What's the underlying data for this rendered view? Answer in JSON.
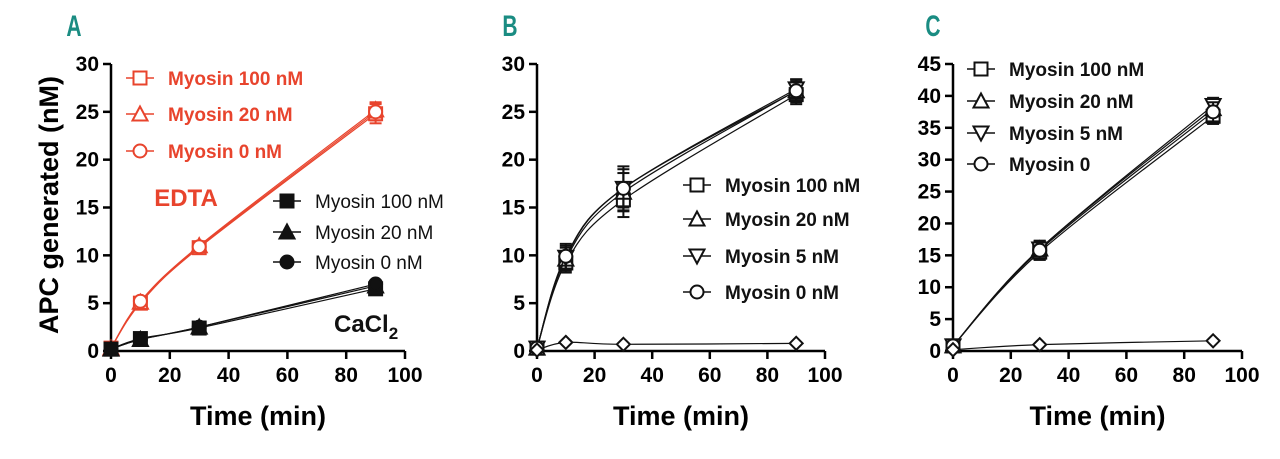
{
  "figure": {
    "y_axis_label": "APC generated (nM)",
    "x_axis_label": "Time (min)"
  },
  "colors": {
    "edta": "#e8442d",
    "cacl2": "#111111",
    "axis": "#000000",
    "panel_letter": "#1a8c82"
  },
  "chart_data": [
    {
      "panel": "A",
      "type": "scatter",
      "xlabel": "Time (min)",
      "ylabel": "APC generated (nM)",
      "xlim": [
        0,
        100
      ],
      "ylim": [
        0,
        30
      ],
      "xticks": [
        0,
        20,
        40,
        60,
        80,
        100
      ],
      "yticks": [
        0,
        5,
        10,
        15,
        20,
        25,
        30
      ],
      "annotations": [
        {
          "text": "EDTA",
          "color": "edta"
        },
        {
          "text": "CaCl",
          "subscript": "2",
          "color": "cacl2"
        }
      ],
      "series": [
        {
          "name": "Myosin 100 nM",
          "group": "EDTA",
          "marker": "square-open",
          "x": [
            0,
            10,
            30,
            90
          ],
          "y": [
            0.3,
            5.0,
            10.8,
            24.8
          ],
          "error": [
            0,
            0.3,
            0.4,
            1.0
          ]
        },
        {
          "name": "Myosin 20 nM",
          "group": "EDTA",
          "marker": "triangle-up-open",
          "x": [
            0,
            10,
            30,
            90
          ],
          "y": [
            0.3,
            5.1,
            11.0,
            25.2
          ],
          "error": [
            0,
            0.3,
            0.4,
            0.8
          ]
        },
        {
          "name": "Myosin 0 nM",
          "group": "EDTA",
          "marker": "circle-open",
          "x": [
            0,
            10,
            30,
            90
          ],
          "y": [
            0.3,
            5.2,
            10.9,
            25.0
          ],
          "error": [
            0,
            0.3,
            0.4,
            0.9
          ]
        },
        {
          "name": "Myosin 100 nM",
          "group": "CaCl2",
          "marker": "square-filled",
          "x": [
            0,
            10,
            30,
            90
          ],
          "y": [
            0.2,
            1.3,
            2.4,
            6.5
          ],
          "error": [
            0,
            0.1,
            0.2,
            0.3
          ]
        },
        {
          "name": "Myosin 20 nM",
          "group": "CaCl2",
          "marker": "triangle-up-filled",
          "x": [
            0,
            10,
            30,
            90
          ],
          "y": [
            0.2,
            1.2,
            2.5,
            6.8
          ],
          "error": [
            0,
            0.1,
            0.2,
            0.3
          ]
        },
        {
          "name": "Myosin 0 nM",
          "group": "CaCl2",
          "marker": "circle-filled",
          "x": [
            0,
            10,
            30,
            90
          ],
          "y": [
            0.2,
            1.2,
            2.5,
            7.0
          ],
          "error": [
            0,
            0.1,
            0.2,
            0.3
          ]
        }
      ]
    },
    {
      "panel": "B",
      "type": "scatter",
      "xlabel": "Time (min)",
      "ylabel": "",
      "xlim": [
        0,
        100
      ],
      "ylim": [
        0,
        30
      ],
      "xticks": [
        0,
        20,
        40,
        60,
        80,
        100
      ],
      "yticks": [
        0,
        5,
        10,
        15,
        20,
        25,
        30
      ],
      "series": [
        {
          "name": "Myosin 100 nM",
          "marker": "square-open",
          "x": [
            0,
            10,
            30,
            90
          ],
          "y": [
            0.3,
            9.2,
            15.8,
            26.8
          ],
          "error": [
            0,
            1.0,
            1.8,
            1.0
          ]
        },
        {
          "name": "Myosin 20 nM",
          "marker": "triangle-up-open",
          "x": [
            0,
            10,
            30,
            90
          ],
          "y": [
            0.3,
            9.6,
            16.6,
            27.2
          ],
          "error": [
            0,
            1.2,
            2.0,
            1.0
          ]
        },
        {
          "name": "Myosin 5 nM",
          "marker": "triangle-down-open",
          "x": [
            0,
            10,
            30,
            90
          ],
          "y": [
            0.3,
            9.8,
            17.0,
            27.4
          ],
          "error": [
            0,
            1.2,
            2.0,
            1.0
          ]
        },
        {
          "name": "Myosin 0 nM",
          "marker": "circle-open",
          "x": [
            0,
            10,
            30,
            90
          ],
          "y": [
            0.3,
            9.9,
            17.0,
            27.2
          ],
          "error": [
            0,
            1.3,
            2.3,
            1.2
          ]
        },
        {
          "name": "",
          "marker": "diamond-open",
          "x": [
            0,
            10,
            30,
            90
          ],
          "y": [
            0.1,
            0.9,
            0.7,
            0.8
          ],
          "error": [
            0,
            0,
            0,
            0
          ]
        }
      ]
    },
    {
      "panel": "C",
      "type": "scatter",
      "xlabel": "Time (min)",
      "ylabel": "",
      "xlim": [
        0,
        100
      ],
      "ylim": [
        0,
        45
      ],
      "xticks": [
        0,
        20,
        40,
        60,
        80,
        100
      ],
      "yticks": [
        0,
        5,
        10,
        15,
        20,
        25,
        30,
        35,
        40,
        45
      ],
      "series": [
        {
          "name": "Myosin 100 nM",
          "marker": "square-open",
          "x": [
            0,
            30,
            90
          ],
          "y": [
            0.8,
            15.5,
            36.8
          ],
          "error": [
            0,
            1.2,
            1.2
          ]
        },
        {
          "name": "Myosin 20 nM",
          "marker": "triangle-up-open",
          "x": [
            0,
            30,
            90
          ],
          "y": [
            0.8,
            16.0,
            38.0
          ],
          "error": [
            0,
            1.2,
            1.2
          ]
        },
        {
          "name": "Myosin 5 nM",
          "marker": "triangle-down-open",
          "x": [
            0,
            30,
            90
          ],
          "y": [
            0.8,
            16.0,
            38.5
          ],
          "error": [
            0,
            1.2,
            1.2
          ]
        },
        {
          "name": "Myosin 0",
          "marker": "circle-open",
          "x": [
            0,
            30,
            90
          ],
          "y": [
            0.8,
            15.8,
            37.5
          ],
          "error": [
            0,
            1.5,
            1.5
          ]
        },
        {
          "name": "",
          "marker": "diamond-open",
          "x": [
            0,
            30,
            90
          ],
          "y": [
            0.2,
            1.0,
            1.6
          ],
          "error": [
            0,
            0,
            0
          ]
        }
      ]
    }
  ]
}
